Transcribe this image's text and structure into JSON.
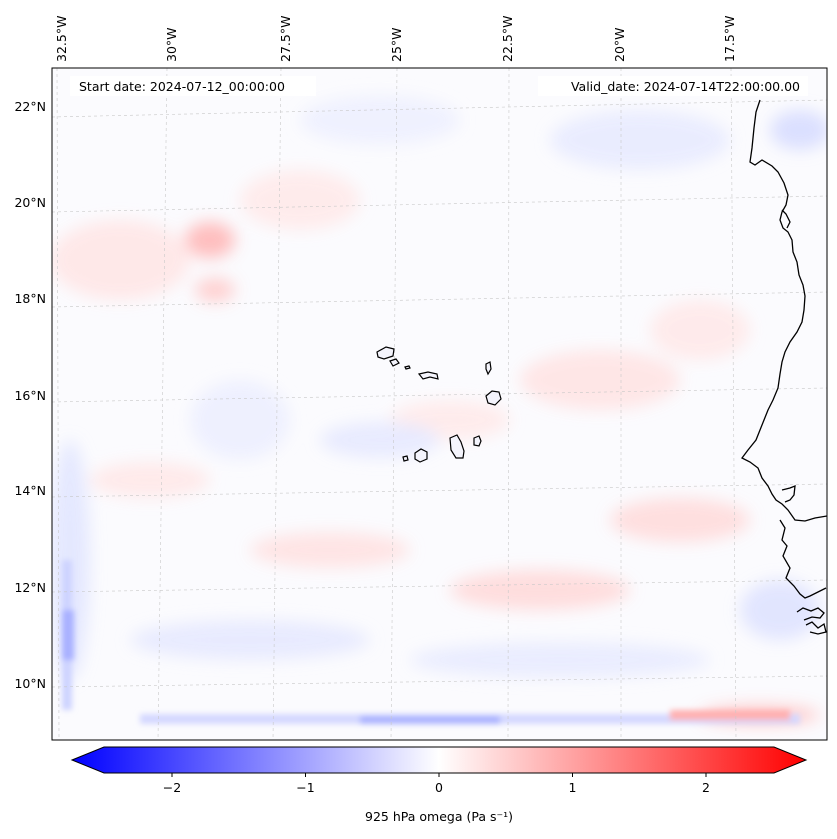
{
  "map": {
    "start_date": "Start date: 2024-07-12_00:00:00",
    "valid_date": "Valid_date: 2024-07-14T22:00:00.00",
    "lon_labels": [
      "32.5°W",
      "30°W",
      "27.5°W",
      "25°W",
      "22.5°W",
      "20°W",
      "17.5°W"
    ],
    "lat_labels": [
      "22°N",
      "20°N",
      "18°N",
      "16°N",
      "14°N",
      "12°N",
      "10°N"
    ],
    "colors": {
      "negative": "#0000ff",
      "neutral": "#ffffff",
      "positive": "#ff0000",
      "coast": "#000000"
    }
  },
  "colorbar": {
    "label": "925 hPa omega (Pa s⁻¹)",
    "ticks": [
      "−2",
      "−1",
      "0",
      "1",
      "2"
    ],
    "min": -2.7,
    "max": 2.7
  }
}
